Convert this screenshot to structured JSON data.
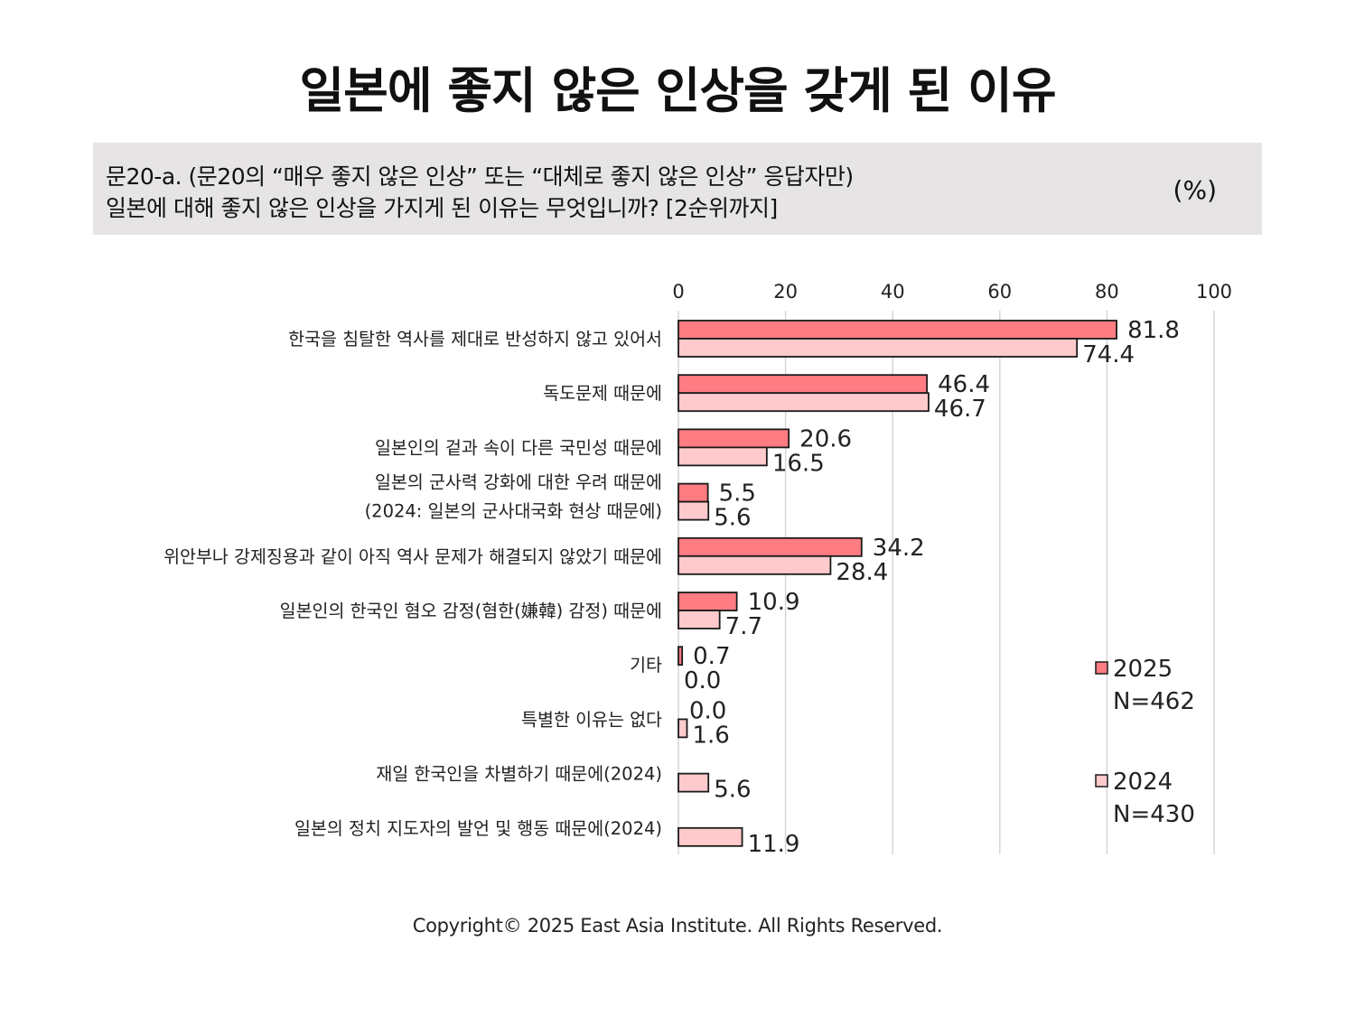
{
  "title": "일본에 좋지 않은 인상을 갖게 된 이유",
  "question": {
    "line1": "문20-a. (문20의 “매우 좋지 않은 인상” 또는 “대체로 좋지 않은 인상” 응답자만)",
    "line2": "일본에 대해 좋지 않은 인상을 가지게 된 이유는 무엇입니까? [2순위까지]",
    "unit": "(%)"
  },
  "footer": "Copyright© 2025 East Asia Institute. All Rights Reserved.",
  "colors": {
    "series_2025": "#ff7c82",
    "series_2024": "#ffcacc",
    "bar_border": "#1a1a1a",
    "grid": "#d6d6d6"
  },
  "chart_data": {
    "type": "bar",
    "orientation": "horizontal",
    "xlim": [
      0,
      100
    ],
    "xticks": [
      "0",
      "20",
      "40",
      "60",
      "80",
      "100"
    ],
    "grid": true,
    "categories": [
      [
        "한국을 침탈한 역사를 제대로 반성하지 않고 있어서"
      ],
      [
        "독도문제 때문에"
      ],
      [
        "일본인의 겉과 속이 다른 국민성 때문에"
      ],
      [
        "일본의 군사력 강화에 대한 우려 때문에",
        "(2024: 일본의 군사대국화 현상 때문에)"
      ],
      [
        "위안부나 강제징용과 같이 아직 역사 문제가 해결되지 않았기 때문에"
      ],
      [
        "일본인의 한국인 혐오 감정(혐한(嫌韓) 감정) 때문에"
      ],
      [
        "기타"
      ],
      [
        "특별한 이유는 없다"
      ],
      [
        "재일 한국인을 차별하기 때문에(2024)"
      ],
      [
        "일본의 정치 지도자의 발언 및 행동 때문에(2024)"
      ]
    ],
    "series": [
      {
        "name": "2025",
        "n_label": "N=462",
        "values": [
          81.8,
          46.4,
          20.6,
          5.5,
          34.2,
          10.9,
          0.7,
          0.0,
          null,
          null
        ],
        "labels": [
          "81.8",
          "46.4",
          "20.6",
          "5.5",
          "34.2",
          "10.9",
          "0.7",
          "0.0",
          null,
          null
        ]
      },
      {
        "name": "2024",
        "n_label": "N=430",
        "values": [
          74.4,
          46.7,
          16.5,
          5.6,
          28.4,
          7.7,
          0.0,
          1.6,
          5.6,
          11.9
        ],
        "labels": [
          "74.4",
          "46.7",
          "16.5",
          "5.6",
          "28.4",
          "7.7",
          "0.0",
          "1.6",
          "5.6",
          "11.9"
        ]
      }
    ],
    "legend_position": "right"
  }
}
